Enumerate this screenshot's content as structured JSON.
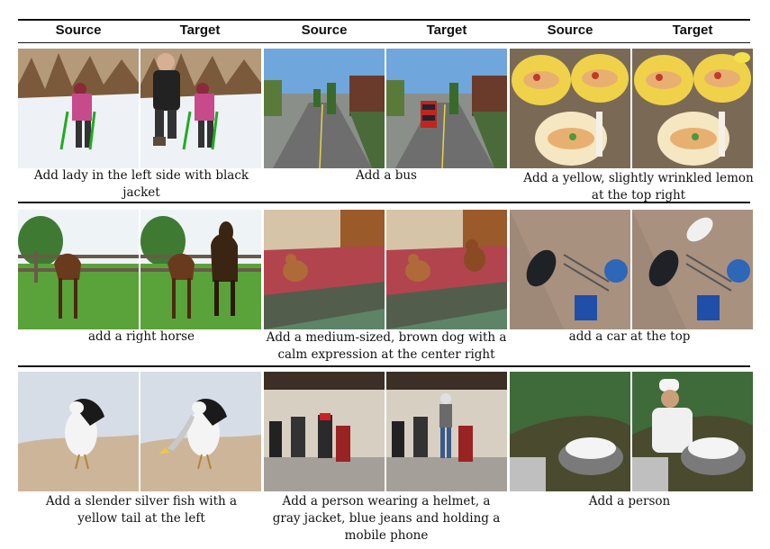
{
  "header": {
    "col_labels": [
      "Source",
      "Target",
      "Source",
      "Target",
      "Source",
      "Target"
    ]
  },
  "rows": [
    {
      "captions": [
        "Add lady in the left side with black jacket",
        "Add a bus",
        "Add a yellow, slightly wrinkled lemon at the top right"
      ]
    },
    {
      "captions": [
        "add a right horse",
        "Add a medium-sized, brown dog with a calm expression at the center right",
        "add a car at the top"
      ]
    },
    {
      "captions": [
        "Add a slender silver fish with a yellow tail at the left",
        "Add a person wearing a helmet, a gray jacket,  blue jeans and holding a mobile phone",
        "Add a person"
      ]
    }
  ],
  "colors": {
    "rule": "#111111",
    "text": "#111111"
  }
}
